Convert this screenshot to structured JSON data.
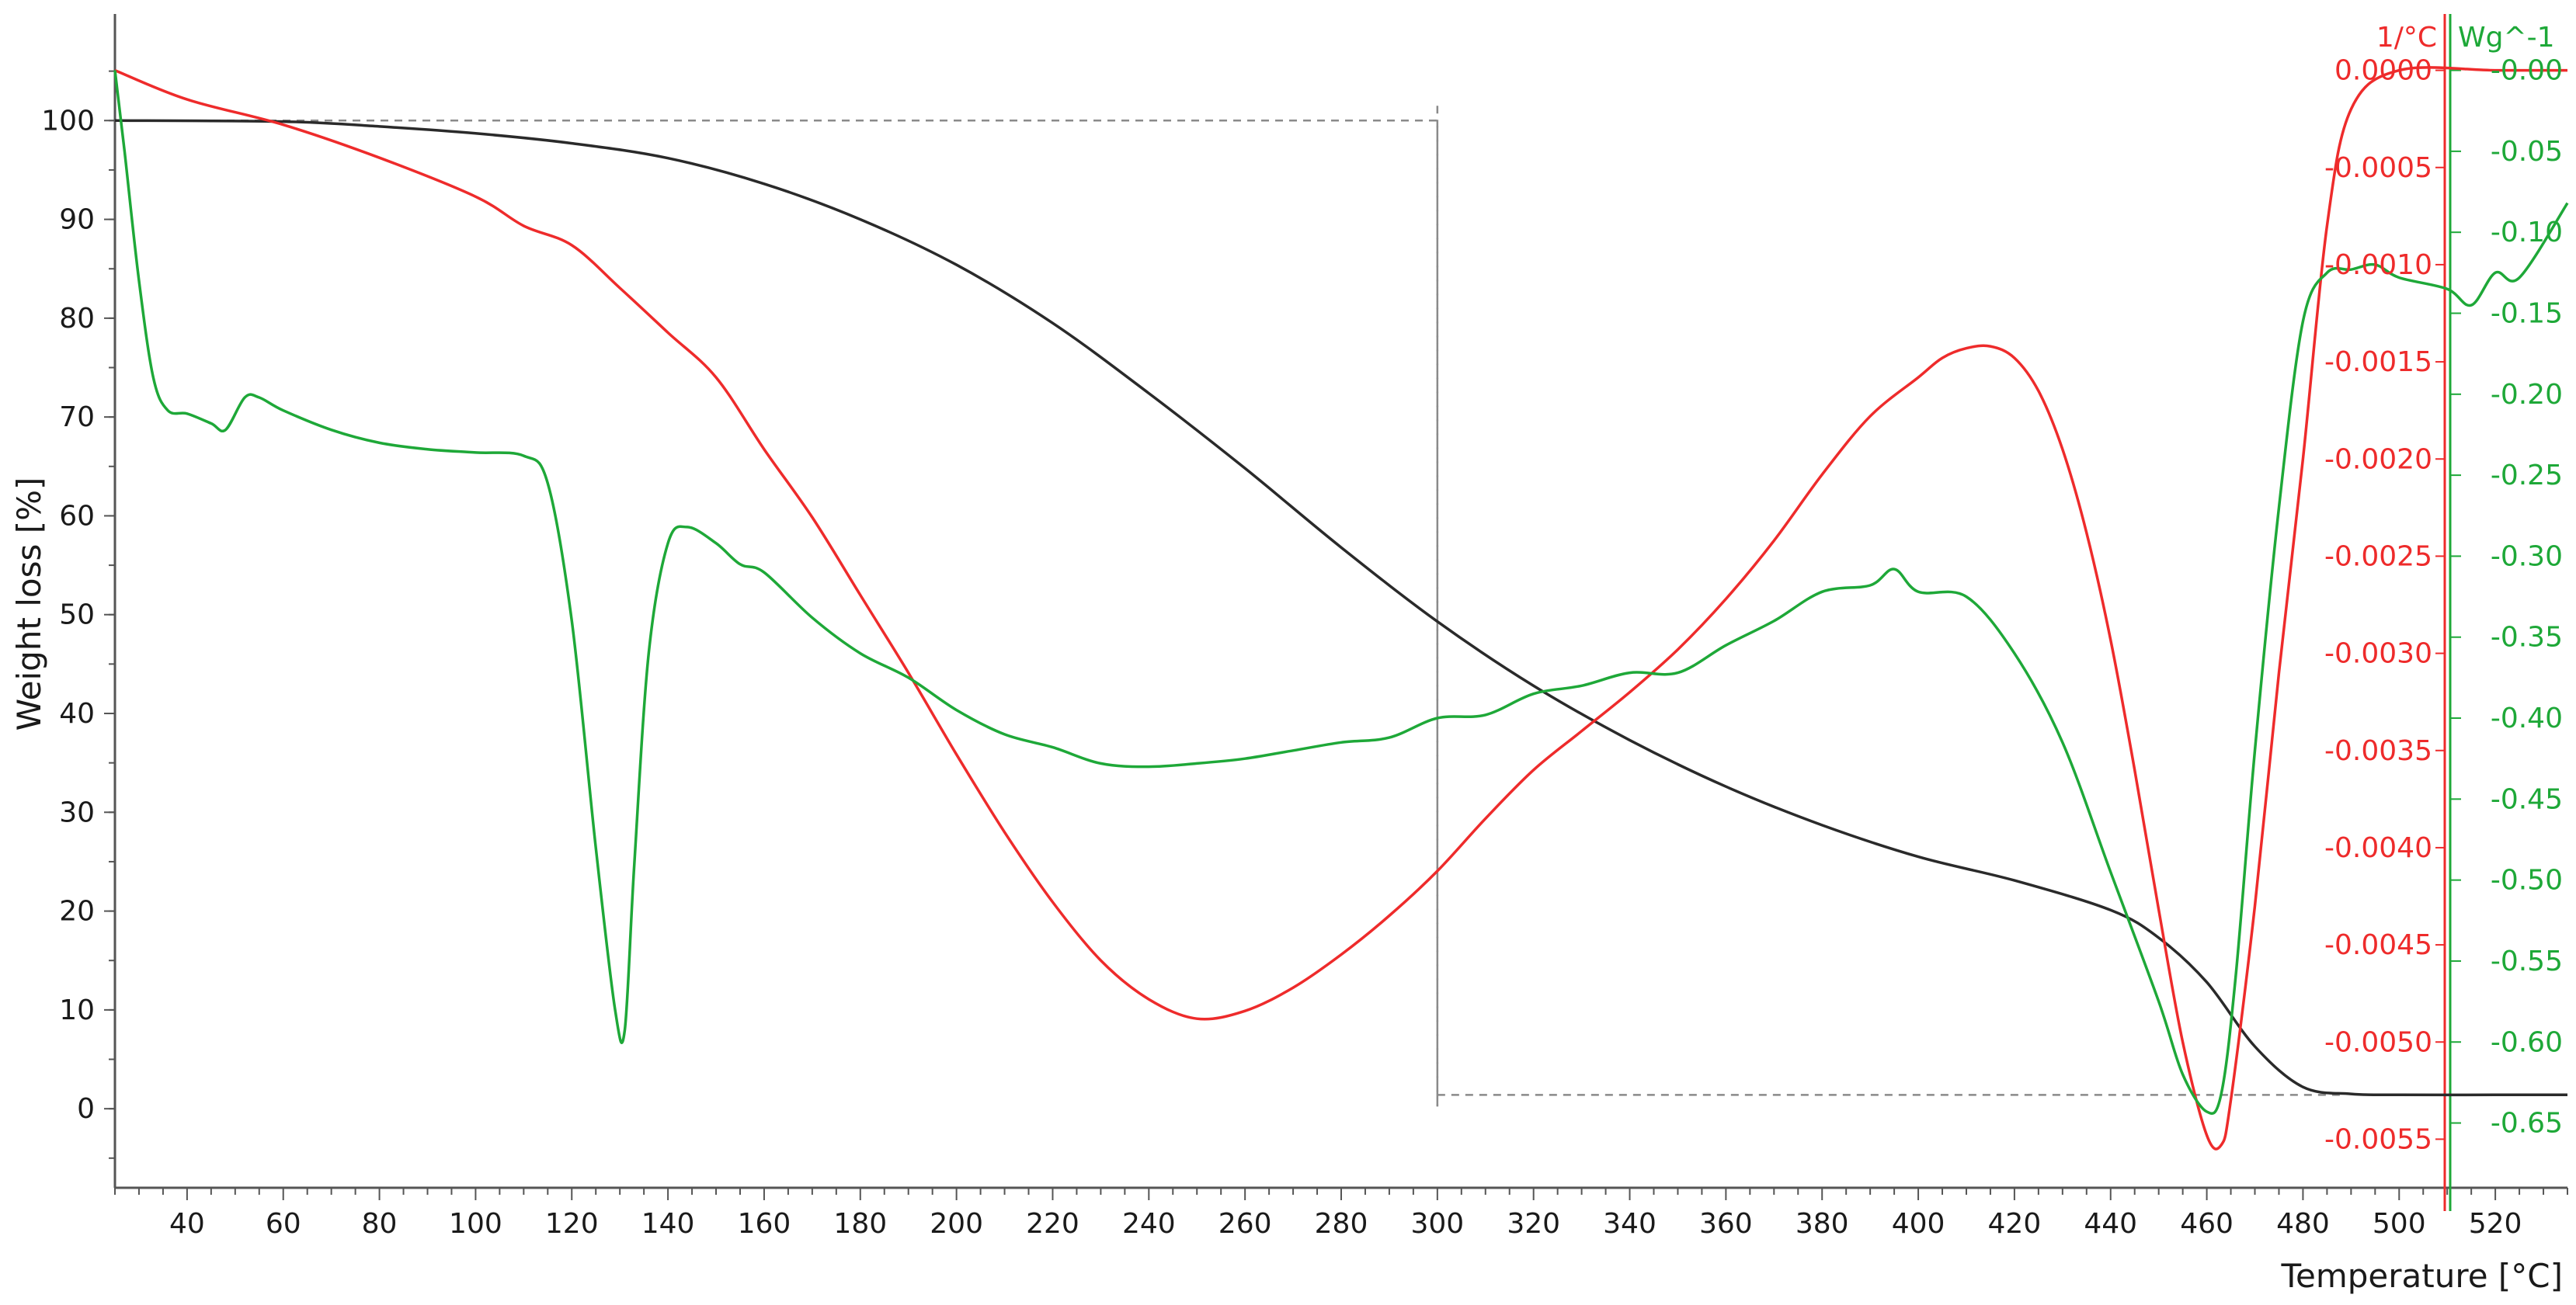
{
  "chart_data": {
    "type": "line",
    "xlabel": "Temperature [°C]",
    "ylabel": "Weight loss [%]",
    "xlim": [
      25,
      535
    ],
    "x_ticks": [
      40,
      60,
      80,
      100,
      120,
      140,
      160,
      180,
      200,
      220,
      240,
      260,
      280,
      300,
      320,
      340,
      360,
      380,
      400,
      420,
      440,
      460,
      480,
      500,
      520
    ],
    "axes": {
      "left": {
        "label": "Weight loss [%]",
        "ylim": [
          -8,
          110
        ],
        "ticks": [
          0,
          10,
          20,
          30,
          40,
          50,
          60,
          70,
          80,
          90,
          100
        ],
        "color": "#1a1a1a"
      },
      "right1": {
        "label": "1/°C",
        "ylim": [
          -0.00575,
          0.00025
        ],
        "ticks": [
          "0.0000",
          "-0.0005",
          "-0.0010",
          "-0.0015",
          "-0.0020",
          "-0.0025",
          "-0.0030",
          "-0.0035",
          "-0.0040",
          "-0.0045",
          "-0.0050",
          "-0.0055"
        ],
        "color": "#ee2b2b"
      },
      "right2": {
        "label": "Wg^-1",
        "ylim": [
          -0.69,
          0.03
        ],
        "ticks": [
          "-0.00",
          "-0.05",
          "-0.10",
          "-0.15",
          "-0.20",
          "-0.25",
          "-0.30",
          "-0.35",
          "-0.40",
          "-0.45",
          "-0.50",
          "-0.55",
          "-0.60",
          "-0.65"
        ],
        "color": "#1ea838"
      }
    },
    "series": [
      {
        "axis": "left",
        "color": "#2a2a2a",
        "x": [
          25,
          60,
          80,
          100,
          120,
          140,
          160,
          180,
          200,
          220,
          240,
          260,
          280,
          300,
          320,
          340,
          360,
          380,
          400,
          420,
          440,
          450,
          460,
          470,
          480,
          490,
          500,
          520,
          535
        ],
        "y": [
          100,
          99.9,
          99.4,
          98.7,
          97.7,
          96.2,
          93.6,
          90.0,
          85.4,
          79.5,
          72.4,
          64.8,
          56.8,
          49.3,
          42.8,
          37.3,
          32.6,
          28.7,
          25.5,
          23.1,
          20.1,
          17.3,
          12.8,
          6.3,
          2.2,
          1.5,
          1.4,
          1.4,
          1.4
        ]
      },
      {
        "axis": "right1",
        "color": "#ee2b2b",
        "x": [
          25,
          40,
          60,
          80,
          100,
          110,
          120,
          130,
          140,
          150,
          160,
          170,
          180,
          190,
          200,
          210,
          220,
          230,
          240,
          250,
          260,
          270,
          280,
          290,
          300,
          310,
          320,
          330,
          340,
          350,
          360,
          370,
          380,
          390,
          400,
          405,
          410,
          415,
          420,
          425,
          430,
          435,
          440,
          445,
          450,
          455,
          460,
          463,
          465,
          470,
          475,
          480,
          485,
          490,
          500,
          520,
          535
        ],
        "y": [
          0,
          -0.00015,
          -0.00028,
          -0.00045,
          -0.00065,
          -0.0008,
          -0.0009,
          -0.00112,
          -0.00135,
          -0.00158,
          -0.00195,
          -0.0023,
          -0.0027,
          -0.0031,
          -0.00352,
          -0.00392,
          -0.00428,
          -0.00458,
          -0.00478,
          -0.00488,
          -0.00484,
          -0.00472,
          -0.00455,
          -0.00435,
          -0.00412,
          -0.00385,
          -0.0036,
          -0.0034,
          -0.0032,
          -0.00298,
          -0.00272,
          -0.00242,
          -0.00208,
          -0.00178,
          -0.00158,
          -0.00148,
          -0.00143,
          -0.00142,
          -0.00148,
          -0.00165,
          -0.00195,
          -0.00238,
          -0.00293,
          -0.0036,
          -0.00432,
          -0.005,
          -0.00548,
          -0.00553,
          -0.0053,
          -0.0043,
          -0.0031,
          -0.002,
          -0.0008,
          -0.0002,
          0,
          0,
          0
        ]
      },
      {
        "axis": "right2",
        "color": "#1ea838",
        "x": [
          25,
          27,
          30,
          33,
          36,
          40,
          45,
          48,
          52,
          55,
          60,
          70,
          80,
          90,
          100,
          110,
          115,
          120,
          125,
          129,
          131,
          133,
          136,
          140,
          144,
          150,
          155,
          160,
          170,
          180,
          190,
          200,
          210,
          220,
          230,
          240,
          250,
          260,
          270,
          280,
          290,
          300,
          310,
          320,
          330,
          340,
          350,
          360,
          370,
          380,
          390,
          395,
          400,
          410,
          420,
          430,
          440,
          450,
          455,
          460,
          463,
          466,
          470,
          475,
          480,
          485,
          490,
          495,
          500,
          510,
          515,
          520,
          525,
          535
        ],
        "y": [
          0,
          -0.05,
          -0.13,
          -0.19,
          -0.21,
          -0.212,
          -0.218,
          -0.222,
          -0.202,
          -0.202,
          -0.21,
          -0.222,
          -0.23,
          -0.234,
          -0.236,
          -0.238,
          -0.255,
          -0.34,
          -0.48,
          -0.58,
          -0.593,
          -0.49,
          -0.36,
          -0.292,
          -0.282,
          -0.292,
          -0.305,
          -0.31,
          -0.338,
          -0.36,
          -0.375,
          -0.395,
          -0.41,
          -0.418,
          -0.428,
          -0.43,
          -0.428,
          -0.425,
          -0.42,
          -0.415,
          -0.412,
          -0.4,
          -0.398,
          -0.385,
          -0.38,
          -0.372,
          -0.372,
          -0.355,
          -0.34,
          -0.322,
          -0.318,
          -0.308,
          -0.322,
          -0.325,
          -0.36,
          -0.415,
          -0.495,
          -0.575,
          -0.62,
          -0.643,
          -0.632,
          -0.56,
          -0.42,
          -0.27,
          -0.155,
          -0.125,
          -0.123,
          -0.12,
          -0.128,
          -0.135,
          -0.145,
          -0.125,
          -0.128,
          -0.082
        ]
      }
    ],
    "annotations": [
      {
        "type": "dashed-rect",
        "x1": 25,
        "x2": 300,
        "y1": 1.4,
        "y2": 100
      },
      {
        "type": "dashed-rect",
        "x1": 300,
        "x2": 485,
        "y1": 1.4,
        "y2": 100
      }
    ],
    "grid": false,
    "legend": "none"
  }
}
